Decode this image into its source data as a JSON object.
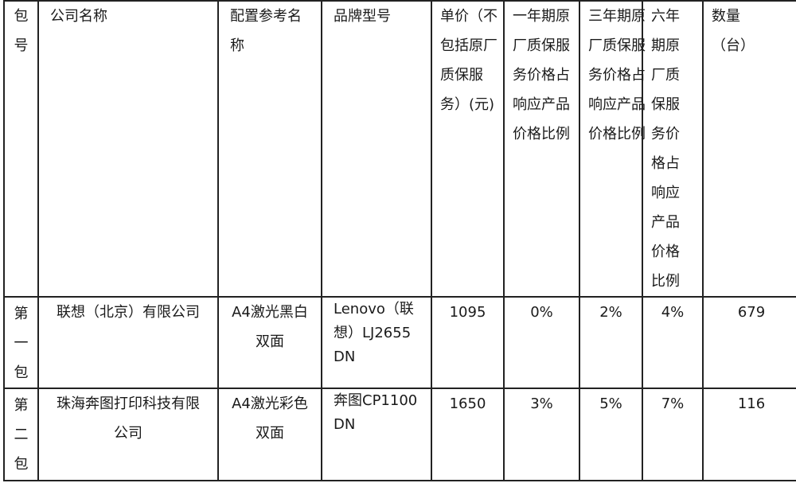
{
  "headers": {
    "package": "包号",
    "company": "公司名称",
    "config": "配置参考名称",
    "brand_model": "品牌型号",
    "unit_price": "单价（不包括原厂质保服务）(元)",
    "warranty_1yr": "一年期原厂质保服务价格占响应产品价格比例",
    "warranty_3yr": "三年期原厂质保服务价格占响应产品价格比例",
    "warranty_6yr": "六年期原厂质保服务价格占响应产品价格比例",
    "quantity": "数量（台）"
  },
  "rows": [
    {
      "package": "第一包",
      "company": "联想（北京）有限公司",
      "config": "A4激光黑白双面",
      "brand_model": "Lenovo（联想）LJ2655DN",
      "unit_price": "1095",
      "warranty_1yr": "0%",
      "warranty_3yr": "2%",
      "warranty_6yr": "4%",
      "quantity": "679"
    },
    {
      "package": "第二包",
      "company": "珠海奔图打印科技有限公司",
      "config": "A4激光彩色双面",
      "brand_model": "奔图CP1100DN",
      "unit_price": "1650",
      "warranty_1yr": "3%",
      "warranty_3yr": "5%",
      "warranty_6yr": "7%",
      "quantity": "116"
    }
  ]
}
